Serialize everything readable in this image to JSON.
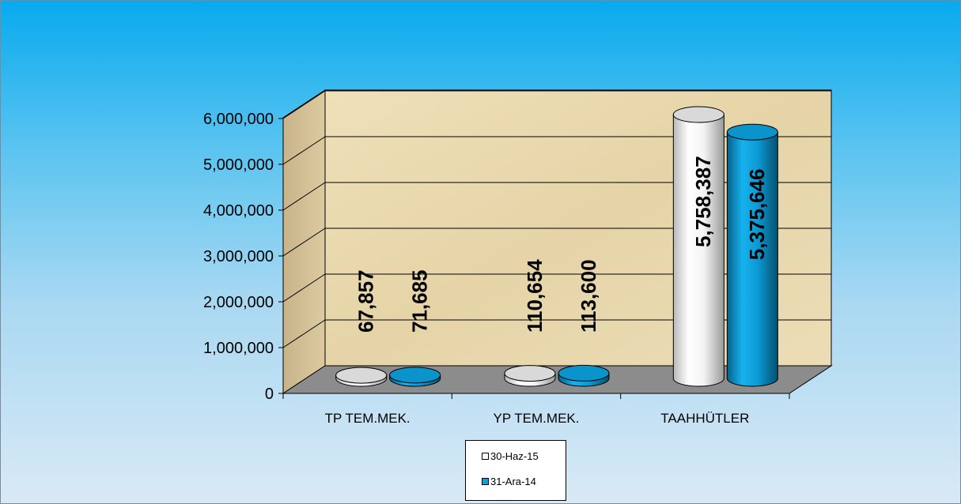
{
  "chart_data": {
    "type": "bar",
    "title": "",
    "xlabel": "",
    "ylabel": "",
    "categories": [
      "TP TEM.MEK.",
      "YP TEM.MEK.",
      "TAAHHÜTLER"
    ],
    "series": [
      {
        "name": "30-Haz-15",
        "values": [
          67857,
          110654,
          5758387
        ],
        "labels": [
          "67,857",
          "110,654",
          "5,758,387"
        ],
        "color": "#ffffff"
      },
      {
        "name": "31-Ara-14",
        "values": [
          71685,
          113600,
          5375646
        ],
        "labels": [
          "71,685",
          "113,600",
          "5,375,646"
        ],
        "color": "#0ba0dc"
      }
    ],
    "ylim": [
      0,
      6000000
    ],
    "yticks": [
      0,
      1000000,
      2000000,
      3000000,
      4000000,
      5000000,
      6000000
    ],
    "ytick_labels": [
      "0",
      "1,000,000",
      "2,000,000",
      "3,000,000",
      "4,000,000",
      "5,000,000",
      "6,000,000"
    ],
    "grid": true,
    "legend_position": "bottom-center",
    "style": "3d-cylinder"
  },
  "colors": {
    "background_top": "#08aaee",
    "background_bottom": "#d9e9f5",
    "wall": "#ead9b0",
    "floor": "#8c8c8c"
  }
}
